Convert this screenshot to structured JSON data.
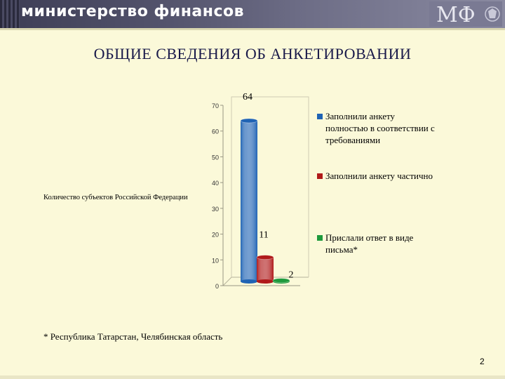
{
  "header": {
    "ministry_name": "министерство финансов",
    "logo_text": "МФ"
  },
  "slide": {
    "title": "ОБЩИЕ СВЕДЕНИЯ ОБ АНКЕТИРОВАНИИ",
    "footnote": "* Республика Татарстан,  Челябинская область",
    "page_number": "2"
  },
  "chart_data": {
    "type": "bar",
    "title": "",
    "ylabel": "Количество субъектов Российской Федерации",
    "xlabel": "",
    "ylim": [
      0,
      70
    ],
    "yticks": [
      0,
      10,
      20,
      30,
      40,
      50,
      60,
      70
    ],
    "grid": false,
    "legend_position": "right",
    "series": [
      {
        "name": "Заполнили анкету полностью в соответствии с требованиями",
        "value": 64,
        "label": "64",
        "color": "#1f63b4"
      },
      {
        "name": "Заполнили анкету частично",
        "value": 11,
        "label": "11",
        "color": "#b01a1a"
      },
      {
        "name": "Прислали ответ в виде письма*",
        "value": 2,
        "label": "2",
        "color": "#1e9a3c"
      }
    ]
  }
}
